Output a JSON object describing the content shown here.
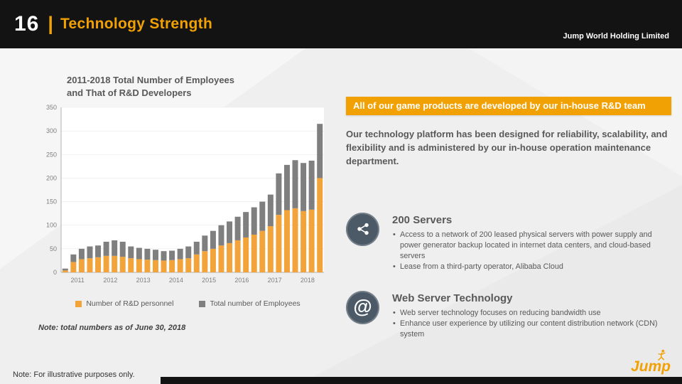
{
  "header": {
    "page_number": "16",
    "divider": "|",
    "title": "Technology Strength",
    "company": "Jump World Holding Limited"
  },
  "chart": {
    "title_line1": "2011-2018  Total Number of Employees",
    "title_line2": "and That of R&D Developers",
    "note": "Note: total numbers as of June 30, 2018"
  },
  "chart_data": {
    "type": "bar",
    "stacked": true,
    "title": "2011-2018 Total Number of Employees and That of R&D Developers",
    "categories_years": [
      "2011",
      "2012",
      "2013",
      "2014",
      "2015",
      "2016",
      "2017",
      "2018"
    ],
    "bars_per_year": 4,
    "ylim": [
      0,
      350
    ],
    "ytick_step": 50,
    "legend_position": "bottom",
    "series": [
      {
        "name": "Number of R&D personnel",
        "color": "#F2A33A",
        "values": [
          4,
          22,
          28,
          30,
          32,
          35,
          35,
          33,
          30,
          28,
          27,
          26,
          25,
          26,
          28,
          30,
          38,
          45,
          50,
          57,
          62,
          68,
          74,
          80,
          88,
          98,
          122,
          132,
          136,
          130,
          133,
          200
        ]
      },
      {
        "name": "Total number of Employees",
        "color": "#7F7F7F",
        "values": [
          8,
          38,
          50,
          55,
          57,
          65,
          68,
          65,
          55,
          52,
          50,
          48,
          45,
          46,
          50,
          55,
          65,
          78,
          88,
          100,
          108,
          118,
          128,
          138,
          150,
          165,
          210,
          228,
          238,
          232,
          237,
          315
        ]
      }
    ]
  },
  "right": {
    "banner": "All of our game products are developed by our in-house R&D team",
    "intro": "Our technology platform has been designed for reliability, scalability, and flexibility and is administered by our in-house operation maintenance department.",
    "sections": [
      {
        "icon": "network-nodes-icon",
        "title": "200 Servers",
        "bullets": [
          "Access to a network of 200 leased physical servers with power supply and power generator backup located in internet data centers, and cloud-based servers",
          "Lease from a third-party operator, Alibaba Cloud"
        ]
      },
      {
        "icon": "at-symbol-icon",
        "title": "Web Server Technology",
        "bullets": [
          "Web server technology focuses on reducing bandwidth use",
          "Enhance user experience by utilizing our content distribution network (CDN) system"
        ]
      }
    ]
  },
  "footer": {
    "note": "Note: For illustrative purposes only.",
    "logo_text": "Jump"
  },
  "colors": {
    "accent_orange": "#F2A104",
    "bar_orange": "#F2A33A",
    "bar_gray": "#7F7F7F",
    "header_black": "#131313",
    "icon_circle": "#4C5A67",
    "body_text": "#595959"
  }
}
